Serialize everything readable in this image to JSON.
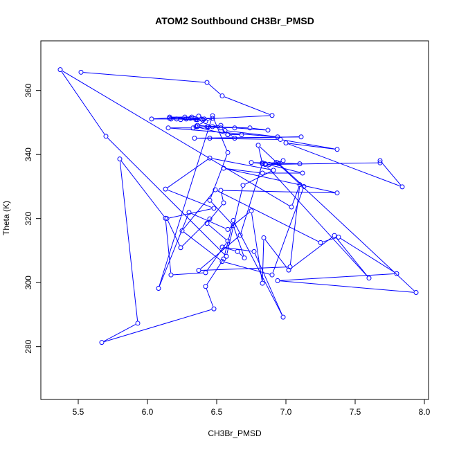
{
  "chart_data": {
    "type": "line",
    "title": "ATOM2 Southbound CH3Br_PMSD",
    "xlabel": "CH3Br_PMSD",
    "ylabel": "Theta (K)",
    "xlim": [
      5.23,
      8.03
    ],
    "ylim": [
      263.5,
      375.5
    ],
    "xticks": [
      5.5,
      6.0,
      6.5,
      7.0,
      7.5,
      8.0
    ],
    "yticks": [
      280,
      300,
      320,
      340,
      360
    ],
    "xtick_labels": [
      "5.5",
      "6.0",
      "6.5",
      "7.0",
      "7.5",
      "8.0"
    ],
    "ytick_labels": [
      "280",
      "300",
      "320",
      "340",
      "360"
    ],
    "grid": false,
    "series": [
      {
        "color": "#0000ff",
        "marker": "open-circle",
        "points": [
          [
            5.52,
            365.7
          ],
          [
            6.43,
            362.5
          ],
          [
            6.54,
            358.3
          ],
          [
            6.9,
            352.2
          ],
          [
            6.41,
            351.1
          ],
          [
            6.37,
            352.0
          ],
          [
            6.21,
            351.1
          ],
          [
            6.4,
            350.8
          ],
          [
            6.24,
            350.9
          ],
          [
            6.35,
            350.9
          ],
          [
            6.28,
            351.1
          ],
          [
            6.17,
            351.1
          ],
          [
            6.39,
            351.1
          ],
          [
            6.03,
            351.1
          ],
          [
            6.27,
            351.7
          ],
          [
            6.36,
            350.9
          ],
          [
            6.16,
            351.3
          ],
          [
            6.16,
            351.7
          ],
          [
            6.32,
            351.7
          ],
          [
            6.31,
            351.3
          ],
          [
            6.47,
            351.3
          ],
          [
            6.42,
            350.3
          ],
          [
            6.36,
            349.1
          ],
          [
            6.47,
            348.7
          ],
          [
            6.53,
            349.1
          ],
          [
            6.44,
            348.7
          ],
          [
            6.74,
            348.3
          ],
          [
            6.87,
            347.6
          ],
          [
            6.63,
            348.3
          ],
          [
            6.36,
            348.7
          ],
          [
            6.35,
            348.7
          ],
          [
            6.58,
            346.2
          ],
          [
            6.68,
            346.2
          ],
          [
            6.58,
            346.2
          ],
          [
            6.53,
            348.3
          ],
          [
            6.43,
            348.7
          ],
          [
            6.33,
            348.3
          ],
          [
            6.15,
            348.3
          ],
          [
            6.94,
            345.5
          ],
          [
            6.56,
            347.5
          ],
          [
            6.63,
            345.1
          ],
          [
            6.45,
            345.1
          ],
          [
            7.11,
            345.5
          ],
          [
            6.34,
            345.1
          ],
          [
            6.96,
            344.7
          ],
          [
            7.37,
            341.6
          ],
          [
            7.0,
            343.6
          ],
          [
            7.84,
            329.9
          ],
          [
            7.68,
            338.1
          ],
          [
            7.68,
            337.4
          ],
          [
            6.88,
            336.9
          ],
          [
            6.93,
            337.5
          ],
          [
            6.98,
            338.1
          ],
          [
            6.94,
            337.4
          ],
          [
            6.83,
            337.4
          ],
          [
            7.1,
            337.1
          ],
          [
            6.75,
            337.5
          ],
          [
            6.85,
            337.1
          ],
          [
            7.12,
            334.2
          ],
          [
            6.83,
            334.2
          ],
          [
            6.55,
            335.7
          ],
          [
            7.37,
            328.0
          ],
          [
            6.53,
            328.8
          ],
          [
            6.55,
            324.9
          ],
          [
            6.43,
            318.5
          ],
          [
            6.58,
            313.0
          ],
          [
            6.42,
            303.1
          ],
          [
            6.17,
            302.4
          ],
          [
            6.13,
            320.1
          ],
          [
            5.8,
            338.6
          ],
          [
            5.93,
            287.3
          ],
          [
            5.67,
            281.3
          ],
          [
            6.48,
            291.8
          ],
          [
            6.42,
            298.8
          ],
          [
            6.55,
            307.4
          ],
          [
            6.62,
            319.4
          ],
          [
            6.98,
            289.2
          ],
          [
            6.77,
            309.7
          ],
          [
            6.54,
            311.1
          ],
          [
            6.65,
            309.7
          ],
          [
            6.7,
            307.7
          ],
          [
            6.62,
            317.8
          ],
          [
            6.45,
            325.7
          ],
          [
            6.58,
            340.6
          ],
          [
            6.47,
            352.1
          ],
          [
            6.08,
            298.2
          ],
          [
            6.3,
            321.9
          ],
          [
            6.58,
            316.6
          ],
          [
            6.75,
            322.4
          ],
          [
            6.83,
            299.8
          ],
          [
            6.84,
            314.0
          ],
          [
            7.02,
            303.9
          ],
          [
            7.35,
            314.7
          ],
          [
            7.6,
            301.4
          ],
          [
            6.85,
            336.9
          ],
          [
            6.95,
            337.1
          ],
          [
            7.13,
            330.0
          ],
          [
            6.9,
            302.4
          ],
          [
            6.54,
            306.6
          ],
          [
            6.25,
            316.2
          ],
          [
            6.49,
            329.0
          ],
          [
            7.25,
            312.5
          ],
          [
            7.38,
            314.2
          ],
          [
            7.8,
            302.8
          ],
          [
            6.94,
            300.6
          ],
          [
            7.94,
            296.9
          ],
          [
            6.8,
            342.9
          ],
          [
            6.83,
            337.1
          ],
          [
            6.67,
            314.8
          ],
          [
            6.37,
            303.8
          ],
          [
            7.03,
            304.9
          ],
          [
            7.1,
            330.6
          ],
          [
            7.04,
            323.6
          ],
          [
            5.37,
            366.5
          ],
          [
            5.7,
            345.7
          ],
          [
            6.57,
            308.2
          ],
          [
            6.69,
            330.4
          ],
          [
            6.91,
            335.1
          ],
          [
            6.45,
            338.9
          ],
          [
            6.13,
            329.2
          ],
          [
            6.48,
            323.2
          ],
          [
            6.14,
            320.0
          ],
          [
            6.24,
            310.9
          ],
          [
            6.45,
            319.9
          ]
        ]
      }
    ]
  }
}
